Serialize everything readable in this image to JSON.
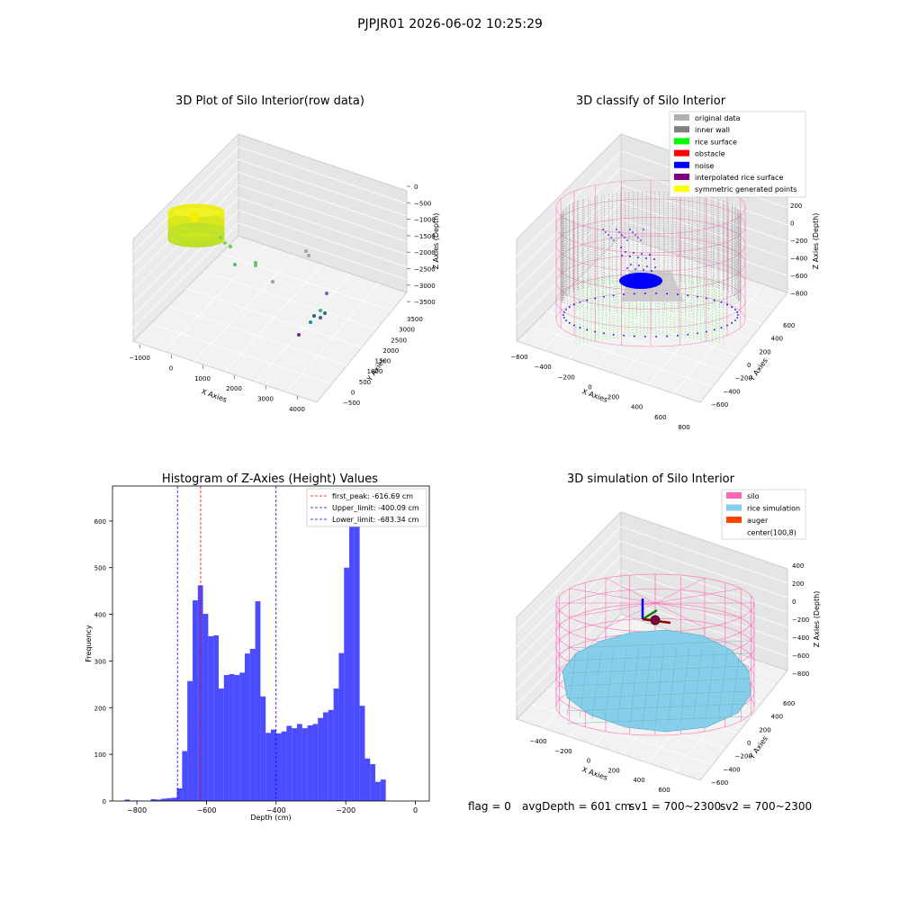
{
  "figure": {
    "title": "PJPJR01 2026-06-02 10:25:29"
  },
  "palette": {
    "pink": "#ff69b4",
    "grey": "#808080",
    "green": "#00ff00",
    "blue": "#0000ff",
    "hist": "#0000ff",
    "red": "#ff0000",
    "purple": "#800080",
    "yellow": "#ffff00",
    "lightgrey": "#b0b0b0",
    "skyblue": "#87ceeb",
    "orange": "#ff4500"
  },
  "chart_data": [
    {
      "type": "scatter3d",
      "title": "3D Plot of Silo Interior(row data)",
      "xlabel": "X Axies",
      "ylabel": "Y Axies",
      "zlabel": "Z Axies (Depth)",
      "xticks": [
        "−1000",
        "0",
        "1000",
        "2000",
        "3000",
        "4000"
      ],
      "yticks": [
        "−500",
        "0",
        "500",
        "1000",
        "1500",
        "2000",
        "2500",
        "3000",
        "3500"
      ],
      "zticks": [
        "0",
        "−500",
        "−1000",
        "−1500",
        "−2000",
        "−2500",
        "−3000",
        "−3500"
      ],
      "outliers": [
        {
          "x": 300,
          "y": 450,
          "z": -1700
        },
        {
          "x": 600,
          "y": 700,
          "z": -1950
        },
        {
          "x": 900,
          "y": 900,
          "z": -2200
        },
        {
          "x": 1100,
          "y": 1000,
          "z": -2300
        },
        {
          "x": 2300,
          "y": 3000,
          "z": -2500
        },
        {
          "x": 2500,
          "y": 3100,
          "z": -2600
        },
        {
          "x": 2800,
          "y": 1500,
          "z": -3100
        },
        {
          "x": 3400,
          "y": 3000,
          "z": -3300
        },
        {
          "x": 3300,
          "y": 2600,
          "z": -3500
        },
        {
          "x": 3000,
          "y": 1200,
          "z": -3600
        }
      ]
    },
    {
      "type": "scatter3d",
      "title": "3D classify of Silo Interior",
      "xlabel": "X Axies",
      "ylabel": "Y Axies",
      "zlabel": "Z Axies (Depth)",
      "xticks": [
        "−600",
        "−400",
        "−200",
        "0",
        "200",
        "400",
        "600",
        "800"
      ],
      "yticks": [
        "−600",
        "−400",
        "−200",
        "0",
        "200",
        "400",
        "600"
      ],
      "zticks": [
        "200",
        "0",
        "−200",
        "−400",
        "−600",
        "−800"
      ],
      "legend": [
        "original data",
        "inner wall",
        "rice surface",
        "obstacle",
        "noise",
        "interpolated rice surface",
        "symmetric generated points"
      ],
      "legend_colors": [
        "#b0b0b0",
        "#808080",
        "#00ff00",
        "#ff0000",
        "#0000ff",
        "#800080",
        "#ffff00"
      ],
      "legend_loc": "upper right"
    },
    {
      "type": "bar",
      "title": "Histogram of Z-Axies (Height) Values",
      "xlabel": "Depth (cm)",
      "ylabel": "Frequency",
      "xlim": [
        -870,
        40
      ],
      "ylim": [
        0,
        675
      ],
      "xticks": [
        -800,
        -600,
        -400,
        -200,
        0
      ],
      "xtick_labels": [
        "−800",
        "−600",
        "−400",
        "−200",
        "0"
      ],
      "yticks": [
        0,
        100,
        200,
        300,
        400,
        500,
        600
      ],
      "bin_start": -850,
      "bin_width": 15,
      "values": [
        0,
        3,
        1,
        1,
        0,
        0,
        4,
        3,
        5,
        6,
        7,
        27,
        107,
        257,
        430,
        462,
        401,
        353,
        355,
        241,
        270,
        272,
        270,
        275,
        316,
        326,
        428,
        224,
        146,
        153,
        145,
        149,
        161,
        156,
        165,
        156,
        162,
        165,
        178,
        190,
        195,
        241,
        317,
        500,
        640,
        607,
        204,
        91,
        79,
        41,
        46
      ],
      "vlines": [
        {
          "x": -616.69,
          "color": "#ff0000",
          "label": "first_peak: -616.69 cm"
        },
        {
          "x": -400.09,
          "color": "#0000ff",
          "label": "Upper_limit: -400.09 cm"
        },
        {
          "x": -683.34,
          "color": "#0000ff",
          "label": "Lower_limit: -683.34 cm"
        }
      ],
      "legend_loc": "upper right"
    },
    {
      "type": "surface3d",
      "title": "3D simulation of Silo Interior",
      "xlabel": "X Axies",
      "ylabel": "Y Axies",
      "zlabel": "Z Axies (Depth)",
      "xticks": [
        "−400",
        "−200",
        "0",
        "200",
        "400",
        "600"
      ],
      "yticks": [
        "−600",
        "−400",
        "−200",
        "0",
        "200",
        "400",
        "600"
      ],
      "zticks": [
        "400",
        "200",
        "0",
        "−200",
        "−400",
        "−600",
        "−800"
      ],
      "legend": [
        "silo",
        "rice simulation",
        "auger",
        "center(100,8)"
      ],
      "legend_colors": [
        "#ff69b4",
        "#87ceeb",
        "#ff4500",
        "#ffffff"
      ],
      "legend_loc": "upper right"
    }
  ],
  "footer": {
    "flag": "flag = 0",
    "avg": "avgDepth = 601 cm",
    "sv1": "sv1 = 700~2300",
    "sv2": "sv2 = 700~2300"
  }
}
